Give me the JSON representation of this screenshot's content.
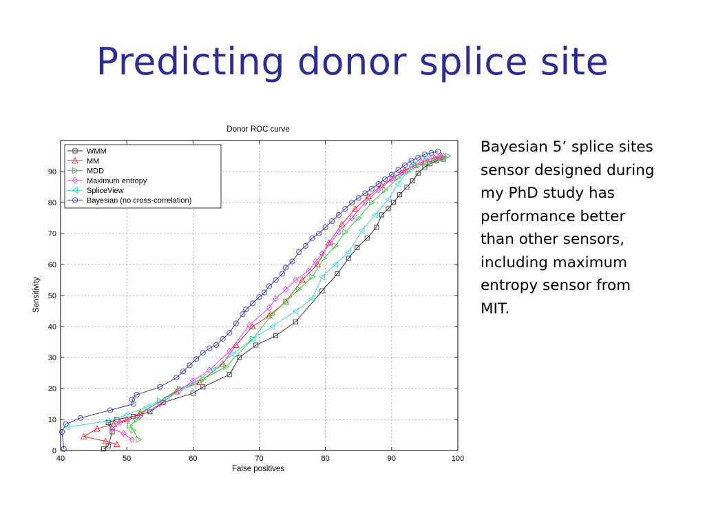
{
  "slide": {
    "title": "Predicting donor splice site",
    "body_lines": [
      "Bayesian 5’ splice sites",
      " sensor designed during",
      " my PhD study has",
      " performance better",
      " than other sensors,",
      " including maximum",
      " entropy sensor from",
      " MIT."
    ]
  },
  "chart_data": {
    "type": "line",
    "title": "Donor ROC curve",
    "xlabel": "False positives",
    "ylabel": "Sensitivity",
    "xlim": [
      40,
      100
    ],
    "ylim": [
      0,
      100
    ],
    "xticks": [
      40,
      50,
      60,
      70,
      80,
      90,
      100
    ],
    "yticks": [
      0,
      10,
      20,
      30,
      40,
      50,
      60,
      70,
      80,
      90
    ],
    "grid": true,
    "legend_position": "top-left",
    "series": [
      {
        "name": "WMM",
        "color": "#333333",
        "marker": "square",
        "x": [
          46.5,
          47.2,
          47.8,
          47.2,
          48.5,
          51,
          53.5,
          55.5,
          60,
          61.5,
          65.5,
          67,
          69.5,
          72.5,
          75.5,
          79.5,
          81.8,
          83.5,
          84.8,
          86.3,
          87.7,
          88.5,
          89.5,
          90.3,
          91.2,
          92.3,
          93.2,
          94,
          95,
          95.8,
          96.8,
          97.8
        ],
        "y": [
          0.5,
          1.5,
          6,
          9,
          10,
          11,
          12.5,
          15.5,
          18.5,
          20.5,
          24.5,
          30,
          34,
          37,
          41.5,
          51.5,
          57,
          62,
          65.5,
          68.5,
          72,
          76,
          78,
          80,
          82.5,
          85,
          87,
          89.5,
          91.5,
          92.5,
          93.5,
          94
        ]
      },
      {
        "name": "MM",
        "color": "#ff2222",
        "marker": "triangle-up",
        "x": [
          48.5,
          46.8,
          43.5,
          45.5,
          48,
          50,
          52,
          57.5,
          61,
          64.5,
          66.5,
          69,
          71.5,
          74,
          76.5,
          78.8,
          80.5,
          82.5,
          84.5,
          86.5,
          88.5,
          90.3,
          92,
          93.5,
          95,
          96.5,
          97.5
        ],
        "y": [
          2,
          3,
          4.5,
          7,
          8.5,
          10,
          12,
          19,
          22,
          28,
          34,
          40,
          43.5,
          48,
          55,
          60,
          67,
          73,
          78,
          82,
          85.5,
          88,
          90.5,
          92,
          93.5,
          94.5,
          95
        ]
      },
      {
        "name": "MDD",
        "color": "#33cc33",
        "marker": "triangle-right",
        "x": [
          51.8,
          51,
          50.5,
          51.5,
          52.3,
          55,
          58,
          61.5,
          65,
          69,
          72,
          74,
          76,
          78,
          79.8,
          81.5,
          83,
          85,
          87,
          89,
          91,
          92.5,
          94,
          95.5,
          97,
          98,
          98.5
        ],
        "y": [
          3.5,
          6.5,
          8,
          10,
          12,
          16,
          20,
          23,
          27,
          36,
          44,
          48,
          52,
          56,
          62,
          66,
          70.5,
          75,
          80,
          84,
          88,
          90,
          92,
          93,
          94,
          94.5,
          95
        ]
      },
      {
        "name": "Maximum entropy",
        "color": "#ff33ff",
        "marker": "diamond",
        "x": [
          50.8,
          49.5,
          47.8,
          49,
          52,
          55,
          58,
          60,
          62.5,
          65.5,
          68.5,
          71.5,
          72.5,
          74,
          75.5,
          77.5,
          78.5,
          79.5,
          80.8,
          82,
          84,
          86,
          88,
          90,
          91.5,
          93,
          94.5,
          95.8,
          97,
          97.8
        ],
        "y": [
          3.5,
          5.5,
          7,
          9,
          11,
          15,
          19.5,
          22.5,
          26,
          32,
          40.5,
          46,
          49,
          52,
          55,
          58,
          61,
          63.5,
          67,
          70.5,
          75,
          80,
          84,
          87.5,
          89.5,
          91.5,
          93,
          94,
          94.5,
          95
        ]
      },
      {
        "name": "SpliceView",
        "color": "#33dddd",
        "marker": "triangle-left",
        "x": [
          41,
          47,
          50,
          53,
          56,
          60,
          63,
          66,
          69,
          72,
          75.5,
          78,
          79.5,
          81.5,
          83.5,
          85.5,
          87.5,
          89.5,
          91,
          93,
          95
        ],
        "y": [
          7.5,
          9.5,
          11.5,
          14,
          17,
          21.5,
          26,
          31,
          36,
          40,
          45,
          49,
          56,
          60,
          64,
          71,
          76,
          81,
          86,
          92,
          95
        ]
      },
      {
        "name": "Bayesian (no cross-correlation)",
        "color": "#3333cc",
        "marker": "circle",
        "x": [
          40.5,
          40.2,
          40.8,
          43,
          47.5,
          51,
          50.8,
          51.5,
          55,
          57.5,
          58.5,
          59.5,
          60.5,
          61.5,
          62.5,
          63.5,
          64.5,
          65.5,
          66.5,
          67.5,
          68,
          69,
          70,
          70.8,
          71.5,
          72.5,
          73.5,
          74,
          75,
          76,
          77,
          78,
          79,
          80,
          81,
          82,
          83,
          84,
          85,
          86,
          87,
          88,
          89,
          90,
          91,
          92,
          93,
          94,
          95,
          96,
          97
        ],
        "y": [
          0.5,
          6,
          8.5,
          10.5,
          13,
          15,
          16.5,
          18,
          20.5,
          23.5,
          25.5,
          27.5,
          29.5,
          31.5,
          33,
          34,
          36,
          38,
          41,
          44,
          45.5,
          47.5,
          49.5,
          51,
          53,
          55,
          57,
          59,
          61,
          64,
          66,
          68.5,
          70,
          72,
          74,
          76,
          78,
          80,
          81.5,
          83,
          84.5,
          86,
          87.5,
          89,
          90.5,
          92,
          93.5,
          94.5,
          95.5,
          96,
          96.5
        ]
      }
    ]
  }
}
